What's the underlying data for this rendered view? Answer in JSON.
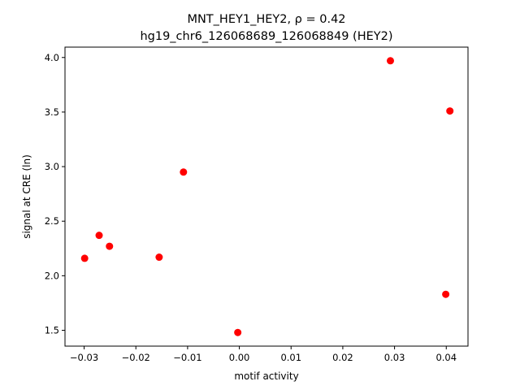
{
  "chart_data": {
    "type": "scatter",
    "title_line1": "MNT_HEY1_HEY2, ρ = 0.42",
    "title_line2": "hg19_chr6_126068689_126068849 (HEY2)",
    "xlabel": "motif activity",
    "ylabel": "signal at CRE (ln)",
    "xlim": [
      -0.0337,
      0.0442
    ],
    "ylim": [
      1.355,
      4.095
    ],
    "xticks": [
      {
        "value": -0.03,
        "label": "−0.03"
      },
      {
        "value": -0.02,
        "label": "−0.02"
      },
      {
        "value": -0.01,
        "label": "−0.01"
      },
      {
        "value": 0.0,
        "label": "0.00"
      },
      {
        "value": 0.01,
        "label": "0.01"
      },
      {
        "value": 0.02,
        "label": "0.02"
      },
      {
        "value": 0.03,
        "label": "0.03"
      },
      {
        "value": 0.04,
        "label": "0.04"
      }
    ],
    "yticks": [
      {
        "value": 1.5,
        "label": "1.5"
      },
      {
        "value": 2.0,
        "label": "2.0"
      },
      {
        "value": 2.5,
        "label": "2.5"
      },
      {
        "value": 3.0,
        "label": "3.0"
      },
      {
        "value": 3.5,
        "label": "3.5"
      },
      {
        "value": 4.0,
        "label": "4.0"
      }
    ],
    "points": [
      {
        "x": -0.0299,
        "y": 2.16
      },
      {
        "x": -0.0271,
        "y": 2.37
      },
      {
        "x": -0.0251,
        "y": 2.27
      },
      {
        "x": -0.0155,
        "y": 2.17
      },
      {
        "x": -0.0108,
        "y": 2.95
      },
      {
        "x": -0.0003,
        "y": 1.48
      },
      {
        "x": 0.0292,
        "y": 3.97
      },
      {
        "x": 0.0399,
        "y": 1.83
      },
      {
        "x": 0.0407,
        "y": 3.51
      }
    ],
    "point_color": "#ff0000",
    "grid": false,
    "legend": null
  }
}
